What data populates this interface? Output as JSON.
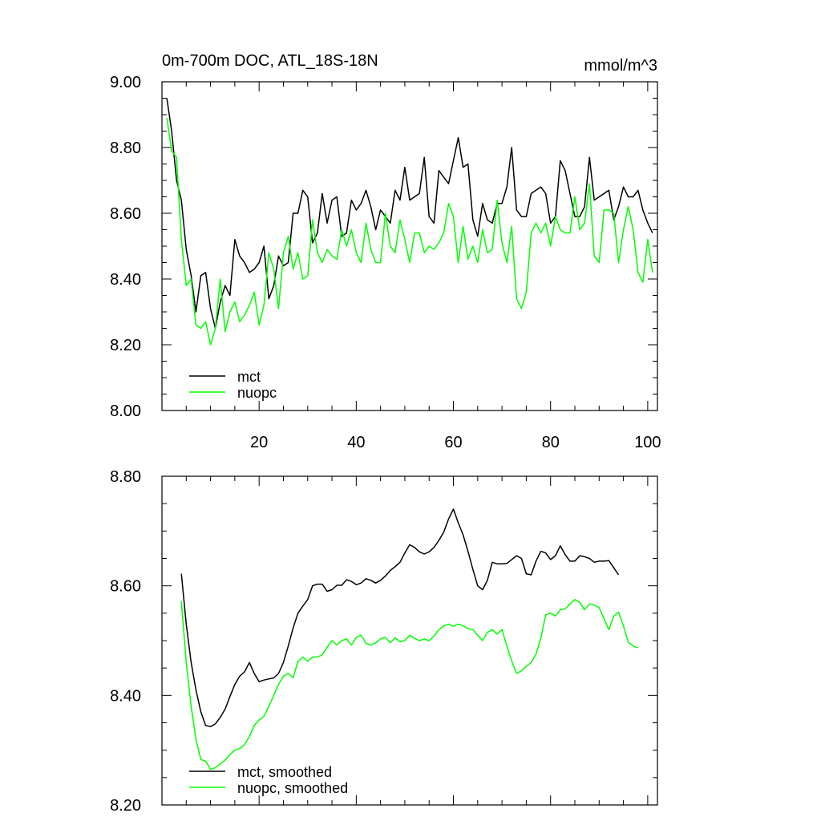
{
  "figure": {
    "title": "0m-700m DOC, ATL_18S-18N",
    "units": "mmol/m^3"
  },
  "chart_data": [
    {
      "type": "line",
      "title": "0m-700m DOC, ATL_18S-18N",
      "units_label": "mmol/m^3",
      "xlabel": "",
      "ylabel": "",
      "xlim": [
        0,
        102
      ],
      "ylim": [
        8.0,
        9.0
      ],
      "x_ticks": [
        20,
        40,
        60,
        80,
        100
      ],
      "x_tick_labels": [
        "20",
        "40",
        "60",
        "80",
        "100"
      ],
      "y_ticks": [
        8.0,
        8.2,
        8.4,
        8.6,
        8.8,
        9.0
      ],
      "y_tick_labels": [
        "8.00",
        "8.20",
        "8.40",
        "8.60",
        "8.80",
        "9.00"
      ],
      "grid": false,
      "legend_position": "bottom-left",
      "x_start": 1,
      "series": [
        {
          "name": "mct",
          "color": "#000000",
          "values": [
            8.95,
            8.85,
            8.7,
            8.64,
            8.49,
            8.41,
            8.3,
            8.41,
            8.42,
            8.31,
            8.25,
            8.33,
            8.38,
            8.35,
            8.52,
            8.47,
            8.45,
            8.42,
            8.43,
            8.45,
            8.5,
            8.34,
            8.38,
            8.47,
            8.44,
            8.45,
            8.6,
            8.6,
            8.67,
            8.65,
            8.51,
            8.54,
            8.66,
            8.57,
            8.64,
            8.65,
            8.53,
            8.54,
            8.64,
            8.61,
            8.63,
            8.67,
            8.62,
            8.55,
            8.61,
            8.59,
            8.57,
            8.67,
            8.64,
            8.74,
            8.64,
            8.65,
            8.66,
            8.77,
            8.59,
            8.57,
            8.73,
            8.71,
            8.69,
            8.76,
            8.83,
            8.74,
            8.75,
            8.58,
            8.53,
            8.63,
            8.58,
            8.57,
            8.63,
            8.63,
            8.68,
            8.8,
            8.61,
            8.59,
            8.59,
            8.66,
            8.67,
            8.68,
            8.66,
            8.57,
            8.59,
            8.76,
            8.73,
            8.66,
            8.59,
            8.59,
            8.62,
            8.77,
            8.64,
            8.65,
            8.66,
            8.67,
            8.58,
            8.62,
            8.68,
            8.65,
            8.65,
            8.67,
            8.61,
            8.57,
            8.54
          ]
        },
        {
          "name": "nuopc",
          "color": "#00ff00",
          "values": [
            8.89,
            8.79,
            8.77,
            8.52,
            8.38,
            8.4,
            8.26,
            8.25,
            8.27,
            8.2,
            8.25,
            8.4,
            8.24,
            8.3,
            8.33,
            8.27,
            8.29,
            8.32,
            8.36,
            8.26,
            8.32,
            8.48,
            8.43,
            8.31,
            8.48,
            8.53,
            8.43,
            8.48,
            8.4,
            8.41,
            8.58,
            8.48,
            8.45,
            8.49,
            8.47,
            8.46,
            8.55,
            8.5,
            8.55,
            8.48,
            8.45,
            8.57,
            8.49,
            8.45,
            8.45,
            8.6,
            8.5,
            8.48,
            8.58,
            8.52,
            8.45,
            8.54,
            8.54,
            8.48,
            8.5,
            8.49,
            8.51,
            8.54,
            8.63,
            8.59,
            8.45,
            8.56,
            8.46,
            8.5,
            8.45,
            8.55,
            8.48,
            8.49,
            8.64,
            8.51,
            8.45,
            8.56,
            8.34,
            8.31,
            8.36,
            8.54,
            8.57,
            8.54,
            8.57,
            8.5,
            8.59,
            8.55,
            8.54,
            8.54,
            8.65,
            8.55,
            8.57,
            8.69,
            8.47,
            8.45,
            8.61,
            8.61,
            8.6,
            8.45,
            8.55,
            8.62,
            8.55,
            8.42,
            8.39,
            8.52,
            8.42
          ]
        }
      ]
    },
    {
      "type": "line",
      "title": "",
      "xlabel": "",
      "ylabel": "",
      "xlim": [
        0,
        102
      ],
      "ylim": [
        8.2,
        8.8
      ],
      "x_ticks": [
        20,
        40,
        60,
        80,
        100
      ],
      "y_ticks": [
        8.2,
        8.4,
        8.6,
        8.8
      ],
      "y_tick_labels": [
        "8.20",
        "8.40",
        "8.60",
        "8.80"
      ],
      "grid": false,
      "legend_position": "bottom-left",
      "x_start": 4,
      "series": [
        {
          "name": "mct, smoothed",
          "color": "#000000",
          "values": [
            8.622,
            8.53,
            8.46,
            8.41,
            8.37,
            8.345,
            8.343,
            8.348,
            8.36,
            8.375,
            8.398,
            8.42,
            8.435,
            8.443,
            8.46,
            8.44,
            8.425,
            8.428,
            8.43,
            8.432,
            8.44,
            8.46,
            8.49,
            8.523,
            8.55,
            8.563,
            8.575,
            8.6,
            8.603,
            8.603,
            8.59,
            8.593,
            8.601,
            8.601,
            8.611,
            8.608,
            8.602,
            8.605,
            8.613,
            8.61,
            8.605,
            8.61,
            8.618,
            8.628,
            8.635,
            8.643,
            8.66,
            8.675,
            8.67,
            8.662,
            8.658,
            8.662,
            8.67,
            8.683,
            8.698,
            8.722,
            8.74,
            8.715,
            8.693,
            8.663,
            8.63,
            8.6,
            8.593,
            8.61,
            8.643,
            8.64,
            8.64,
            8.641,
            8.648,
            8.655,
            8.65,
            8.622,
            8.62,
            8.645,
            8.663,
            8.66,
            8.648,
            8.655,
            8.673,
            8.657,
            8.645,
            8.645,
            8.655,
            8.653,
            8.65,
            8.643,
            8.645,
            8.645,
            8.646,
            8.633,
            8.62
          ]
        },
        {
          "name": "nuopc, smoothed",
          "color": "#00ff00",
          "values": [
            8.572,
            8.46,
            8.38,
            8.32,
            8.283,
            8.28,
            8.265,
            8.268,
            8.275,
            8.282,
            8.292,
            8.3,
            8.303,
            8.31,
            8.325,
            8.345,
            8.355,
            8.362,
            8.38,
            8.4,
            8.42,
            8.435,
            8.44,
            8.432,
            8.462,
            8.47,
            8.462,
            8.47,
            8.47,
            8.474,
            8.488,
            8.5,
            8.492,
            8.5,
            8.503,
            8.492,
            8.506,
            8.51,
            8.495,
            8.492,
            8.496,
            8.503,
            8.506,
            8.496,
            8.505,
            8.498,
            8.5,
            8.51,
            8.504,
            8.5,
            8.503,
            8.5,
            8.508,
            8.52,
            8.527,
            8.53,
            8.526,
            8.53,
            8.527,
            8.522,
            8.52,
            8.51,
            8.5,
            8.515,
            8.52,
            8.512,
            8.52,
            8.49,
            8.463,
            8.44,
            8.445,
            8.453,
            8.46,
            8.475,
            8.505,
            8.547,
            8.55,
            8.545,
            8.556,
            8.558,
            8.567,
            8.575,
            8.57,
            8.556,
            8.567,
            8.565,
            8.56,
            8.54,
            8.52,
            8.545,
            8.552,
            8.527,
            8.497,
            8.49,
            8.487
          ]
        }
      ]
    }
  ]
}
